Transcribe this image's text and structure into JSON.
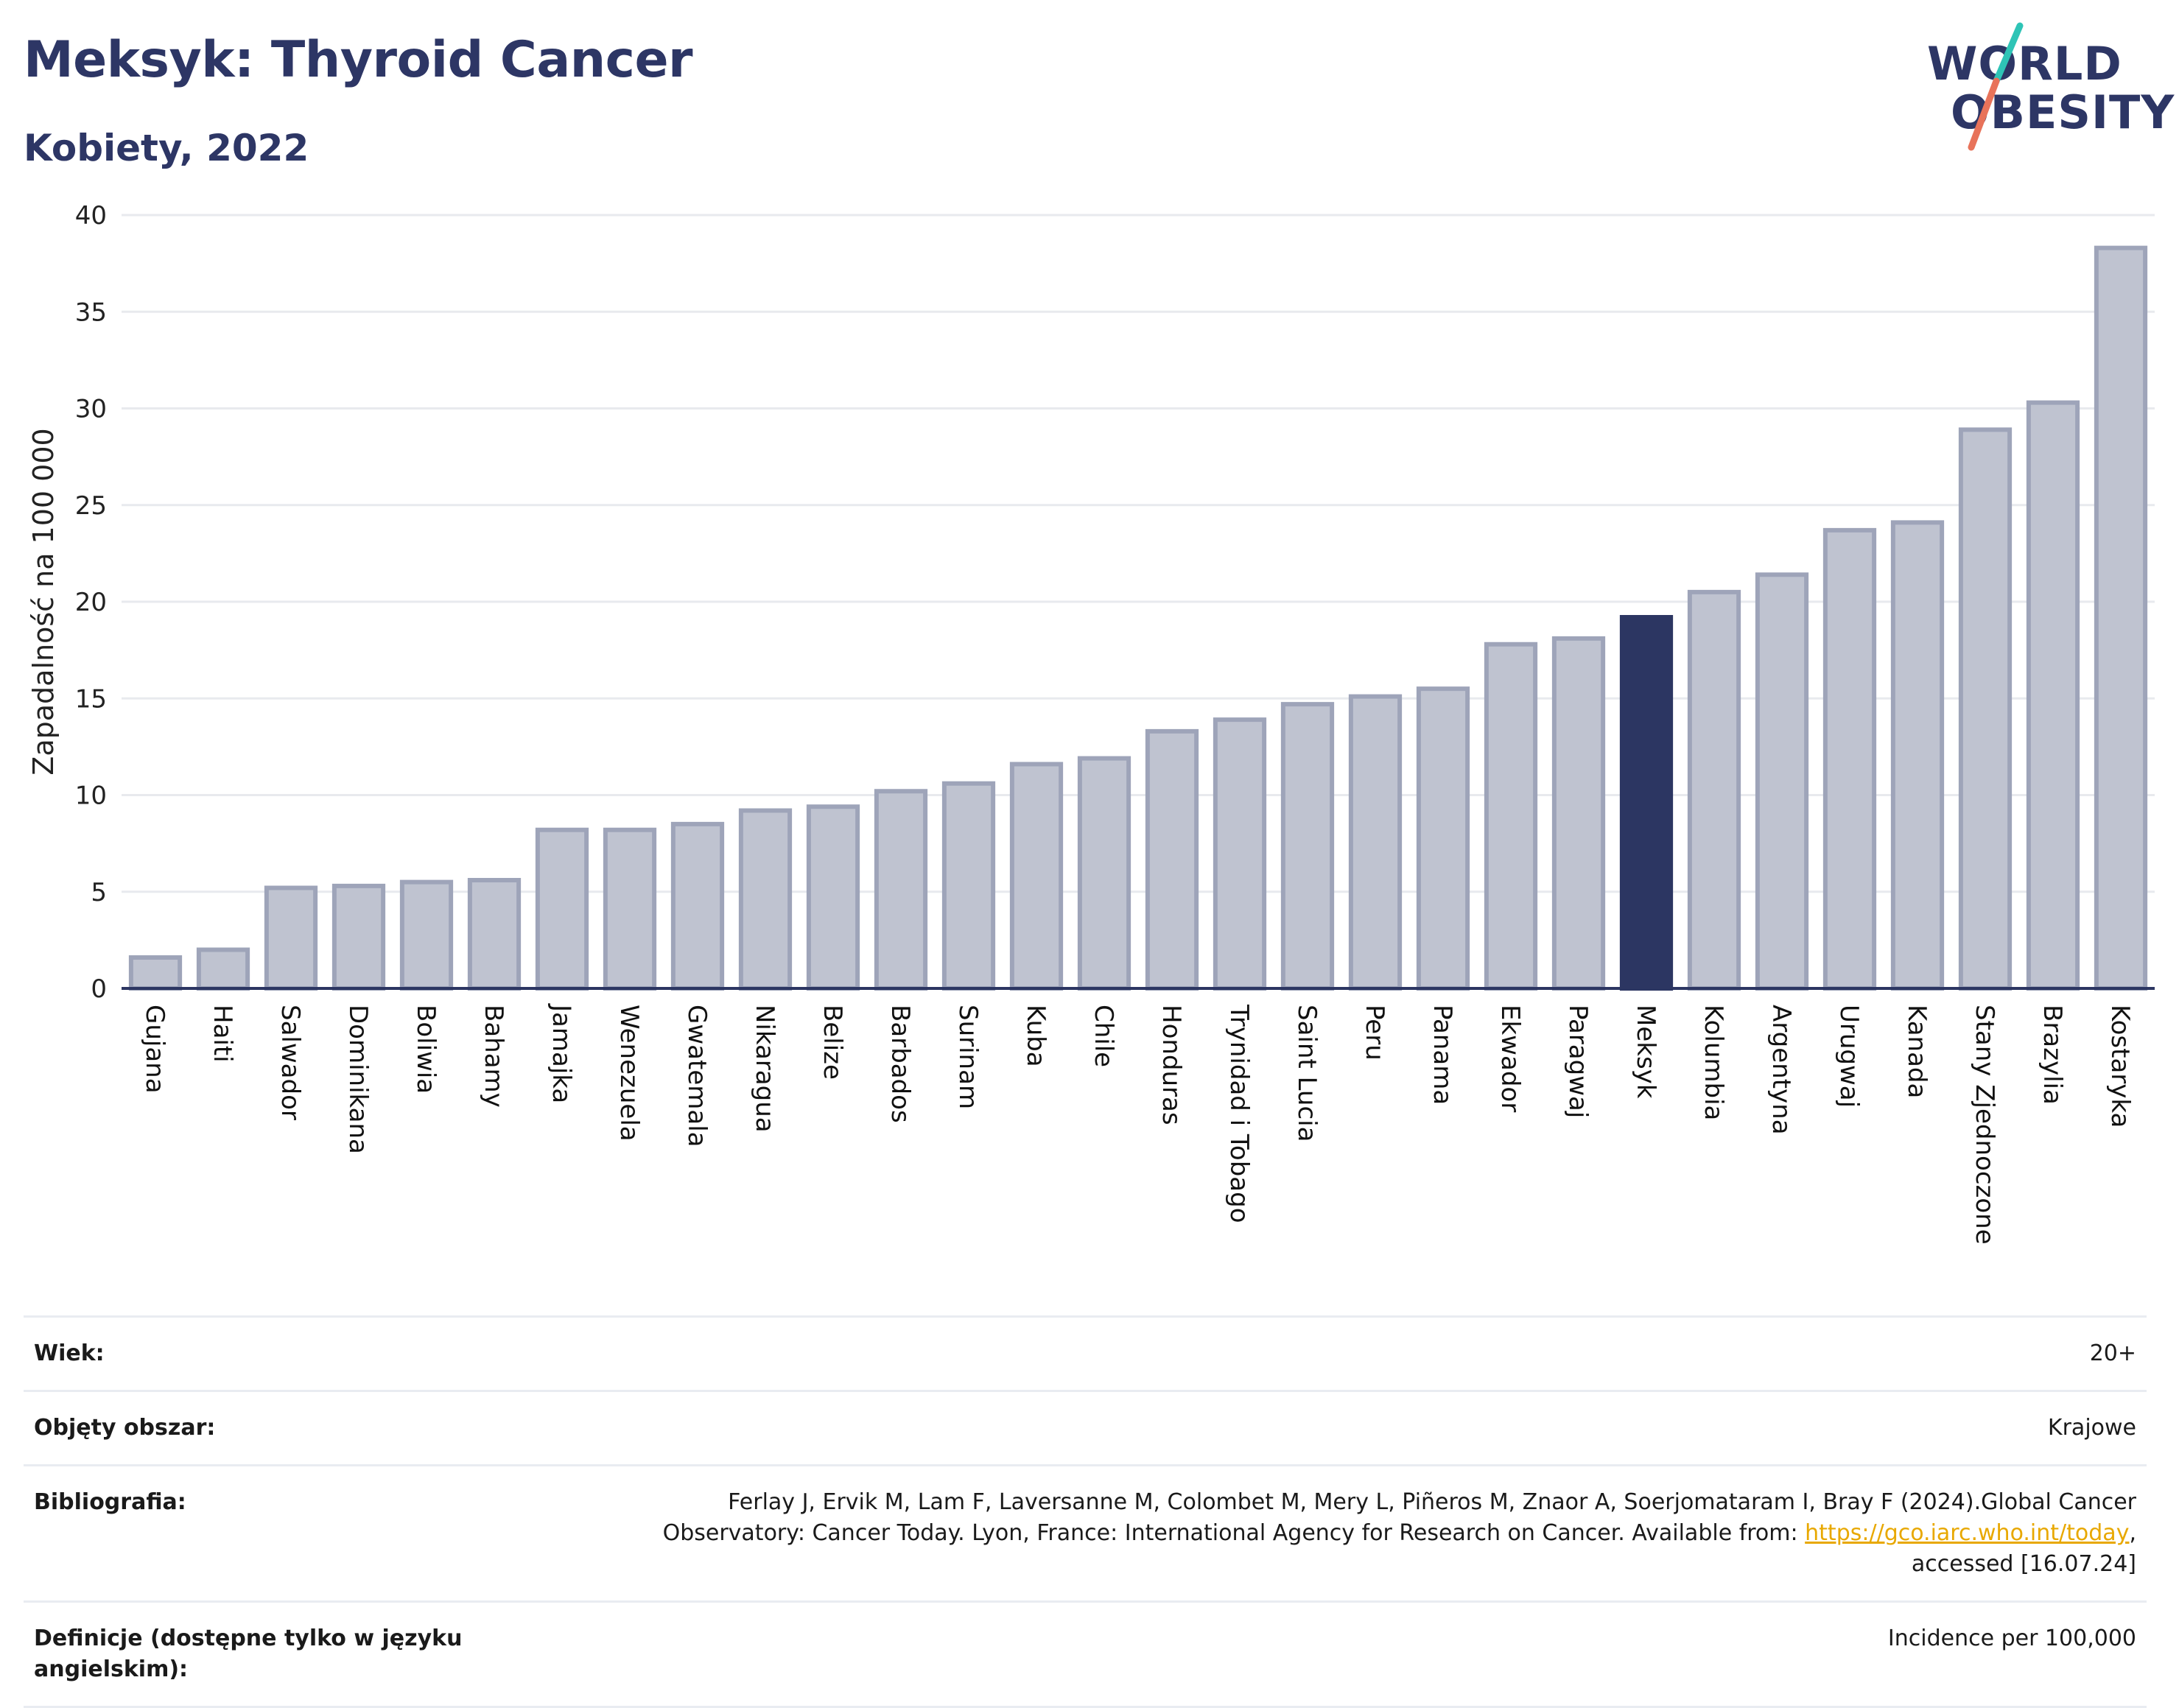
{
  "header": {
    "title": "Meksyk: Thyroid Cancer",
    "subtitle": "Kobiety, 2022",
    "logo_line1": "WORLD",
    "logo_line2": "OBESITY"
  },
  "colors": {
    "bar": "#bfc3d0",
    "bar_border": "#9ea4b9",
    "highlight": "#2c3662",
    "grid": "#e8eaee",
    "axis": "#2c3662",
    "link": "#e8a800",
    "logo_teal": "#2ec4b6",
    "logo_coral": "#e8735a"
  },
  "chart_data": {
    "type": "bar",
    "ylabel": "Zapadalność na 100 000",
    "ylim": [
      0,
      40
    ],
    "yticks": [
      0,
      5,
      10,
      15,
      20,
      25,
      30,
      35,
      40
    ],
    "grid": true,
    "highlight": "Meksyk",
    "categories": [
      "Gujana",
      "Haiti",
      "Salwador",
      "Dominikana",
      "Boliwia",
      "Bahamy",
      "Jamajka",
      "Wenezuela",
      "Gwatemala",
      "Nikaragua",
      "Belize",
      "Barbados",
      "Surinam",
      "Kuba",
      "Chile",
      "Honduras",
      "Trynidad i Tobago",
      "Saint Lucia",
      "Peru",
      "Panama",
      "Ekwador",
      "Paragwaj",
      "Meksyk",
      "Kolumbia",
      "Argentyna",
      "Urugwaj",
      "Kanada",
      "Stany Zjednoczone",
      "Brazylia",
      "Kostaryka"
    ],
    "values": [
      1.6,
      2.0,
      5.2,
      5.3,
      5.5,
      5.6,
      8.2,
      8.2,
      8.5,
      9.2,
      9.4,
      10.2,
      10.6,
      11.6,
      11.9,
      13.3,
      13.9,
      14.7,
      15.1,
      15.5,
      17.8,
      18.1,
      19.2,
      20.5,
      21.4,
      23.7,
      24.1,
      28.9,
      30.3,
      38.3
    ]
  },
  "info": {
    "age_label": "Wiek:",
    "age_value": "20+",
    "coverage_label": "Objęty obszar:",
    "coverage_value": "Krajowe",
    "bib_label": "Bibliografia:",
    "bib_text1": "Ferlay J, Ervik M, Lam F, Laversanne M, Colombet M, Mery L, Piñeros M, Znaor A, Soerjomataram I, Bray F (2024).Global Cancer",
    "bib_text2": "Observatory: Cancer Today. Lyon, France: International Agency for Research on Cancer. Available from: ",
    "bib_link": "https://gco.iarc.who.int/today",
    "bib_text3": ",",
    "bib_text4": "accessed [16.07.24]",
    "def_label": "Definicje (dostępne tylko w języku angielskim):",
    "def_value": "Incidence per 100,000"
  }
}
